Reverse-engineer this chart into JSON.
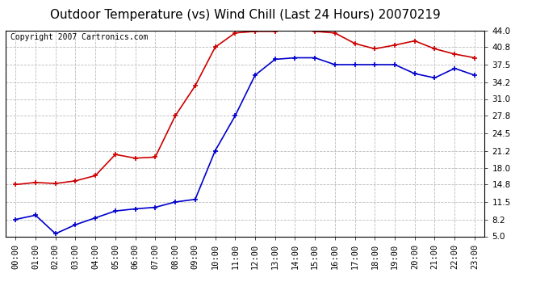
{
  "title": "Outdoor Temperature (vs) Wind Chill (Last 24 Hours) 20070219",
  "copyright": "Copyright 2007 Cartronics.com",
  "x_labels": [
    "00:00",
    "01:00",
    "02:00",
    "03:00",
    "04:00",
    "05:00",
    "06:00",
    "07:00",
    "08:00",
    "09:00",
    "10:00",
    "11:00",
    "12:00",
    "13:00",
    "14:00",
    "15:00",
    "16:00",
    "17:00",
    "18:00",
    "19:00",
    "20:00",
    "21:00",
    "22:00",
    "23:00"
  ],
  "temp_red": [
    14.8,
    15.2,
    15.0,
    15.5,
    16.5,
    20.5,
    19.8,
    20.0,
    27.8,
    33.5,
    40.8,
    43.5,
    43.8,
    43.8,
    44.5,
    43.8,
    43.5,
    41.5,
    40.5,
    41.2,
    42.0,
    40.5,
    39.5,
    38.8
  ],
  "wind_chill_blue": [
    8.2,
    9.0,
    5.5,
    7.2,
    8.5,
    9.8,
    10.2,
    10.5,
    11.5,
    12.0,
    21.2,
    27.8,
    35.5,
    38.5,
    38.8,
    38.8,
    37.5,
    37.5,
    37.5,
    37.5,
    35.8,
    35.0,
    36.8,
    35.5
  ],
  "red_color": "#cc0000",
  "blue_color": "#0000cc",
  "bg_color": "#ffffff",
  "plot_bg_color": "#ffffff",
  "grid_color": "#bbbbbb",
  "ylim": [
    5.0,
    44.0
  ],
  "yticks": [
    5.0,
    8.2,
    11.5,
    14.8,
    18.0,
    21.2,
    24.5,
    27.8,
    31.0,
    34.2,
    37.5,
    40.8,
    44.0
  ],
  "title_fontsize": 11,
  "copyright_fontsize": 7,
  "tick_fontsize": 7.5
}
